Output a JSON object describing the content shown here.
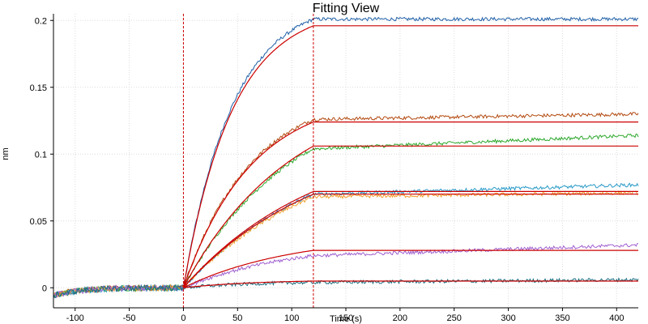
{
  "chart_data": {
    "type": "line",
    "title": "Fitting View",
    "xlabel": "Time (s)",
    "ylabel": "nm",
    "xlim": [
      -120,
      420
    ],
    "ylim": [
      -0.015,
      0.205
    ],
    "x_ticks": [
      -100,
      -50,
      0,
      50,
      100,
      150,
      200,
      250,
      300,
      350,
      400
    ],
    "y_ticks": [
      0,
      0.05,
      0.1,
      0.15,
      0.2
    ],
    "y_tick_labels": [
      "0",
      "0.05",
      "0.1",
      "0.15",
      "0.2"
    ],
    "grid": true,
    "legend": "none",
    "vertical_markers": [
      0,
      120
    ],
    "series": [
      {
        "color": "#1f5fa8",
        "assoc_end": 0.201,
        "fit_plateau": 0.196,
        "dissoc_end": 0.201,
        "k": 0.022
      },
      {
        "color": "#b34a10",
        "assoc_end": 0.126,
        "fit_plateau": 0.124,
        "dissoc_end": 0.13,
        "k": 0.016
      },
      {
        "color": "#2ea82e",
        "assoc_end": 0.104,
        "fit_plateau": 0.106,
        "dissoc_end": 0.114,
        "k": 0.01
      },
      {
        "color": "#2a9ac8",
        "assoc_end": 0.07,
        "fit_plateau": 0.072,
        "dissoc_end": 0.077,
        "k": 0.008
      },
      {
        "color": "#f0a030",
        "assoc_end": 0.068,
        "fit_plateau": 0.07,
        "dissoc_end": 0.071,
        "k": 0.008
      },
      {
        "color": "#a060d0",
        "assoc_end": 0.024,
        "fit_plateau": 0.028,
        "dissoc_end": 0.032,
        "k": 0.01
      },
      {
        "color": "#1e6e80",
        "assoc_end": 0.004,
        "fit_plateau": 0.005,
        "dissoc_end": 0.006,
        "k": 0.015
      }
    ],
    "fit_color": "#cc0000",
    "marker_color": "#cc0000"
  }
}
